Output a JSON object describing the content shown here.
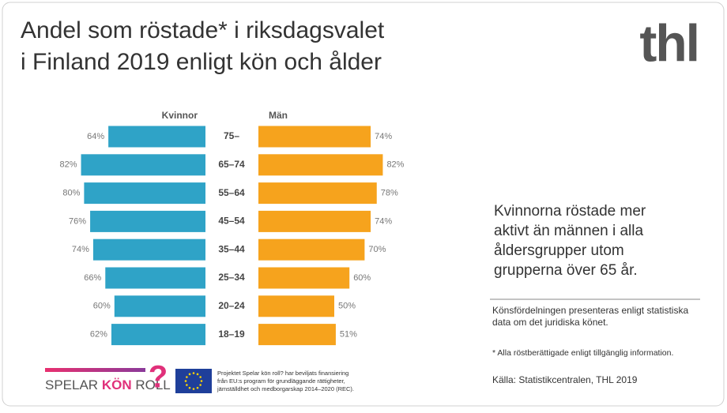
{
  "chart_data": {
    "type": "butterfly",
    "categories": [
      "75–",
      "65–74",
      "55–64",
      "45–54",
      "35–44",
      "25–34",
      "20–24",
      "18–19"
    ],
    "series": [
      {
        "name": "Kvinnor",
        "color": "#2fa3c7",
        "values": [
          64,
          82,
          80,
          76,
          74,
          66,
          60,
          62
        ],
        "value_labels": [
          "64%",
          "82%",
          "80%",
          "76%",
          "74%",
          "66%",
          "60%",
          "62%"
        ]
      },
      {
        "name": "Män",
        "color": "#f6a31d",
        "values": [
          74,
          82,
          78,
          74,
          70,
          60,
          50,
          51
        ],
        "value_labels": [
          "74%",
          "82%",
          "78%",
          "74%",
          "70%",
          "60%",
          "50%",
          "51%"
        ]
      }
    ]
  },
  "header": {
    "title": [
      "Andel som röstade* i riksdagsvalet",
      "i Finland 2019 enligt kön och ålder"
    ],
    "logo": "thl"
  },
  "summary": [
    "Kvinnorna röstade mer",
    "aktivt än männen i alla",
    "åldersgrupper utom",
    "grupperna över 65 år."
  ],
  "notes": [
    "Könsfördelningen presenteras enligt statistiska",
    "data om det juridiska könet."
  ],
  "footnote": "* Alla röstberättigade enligt tillgänglig information.",
  "source": "Källa: Statistikcentralen,  THL 2019",
  "footer": {
    "logo_words": [
      "SPELAR",
      "KÖN",
      "ROLL"
    ],
    "logo_mark": "?",
    "eu_text": [
      "Projektet Spelar kön roll? har beviljats finansiering",
      "från EU:s program för grundläggande rättigheter,",
      "jämställdhet och medborgarskap 2014–2020 (REC)."
    ]
  }
}
